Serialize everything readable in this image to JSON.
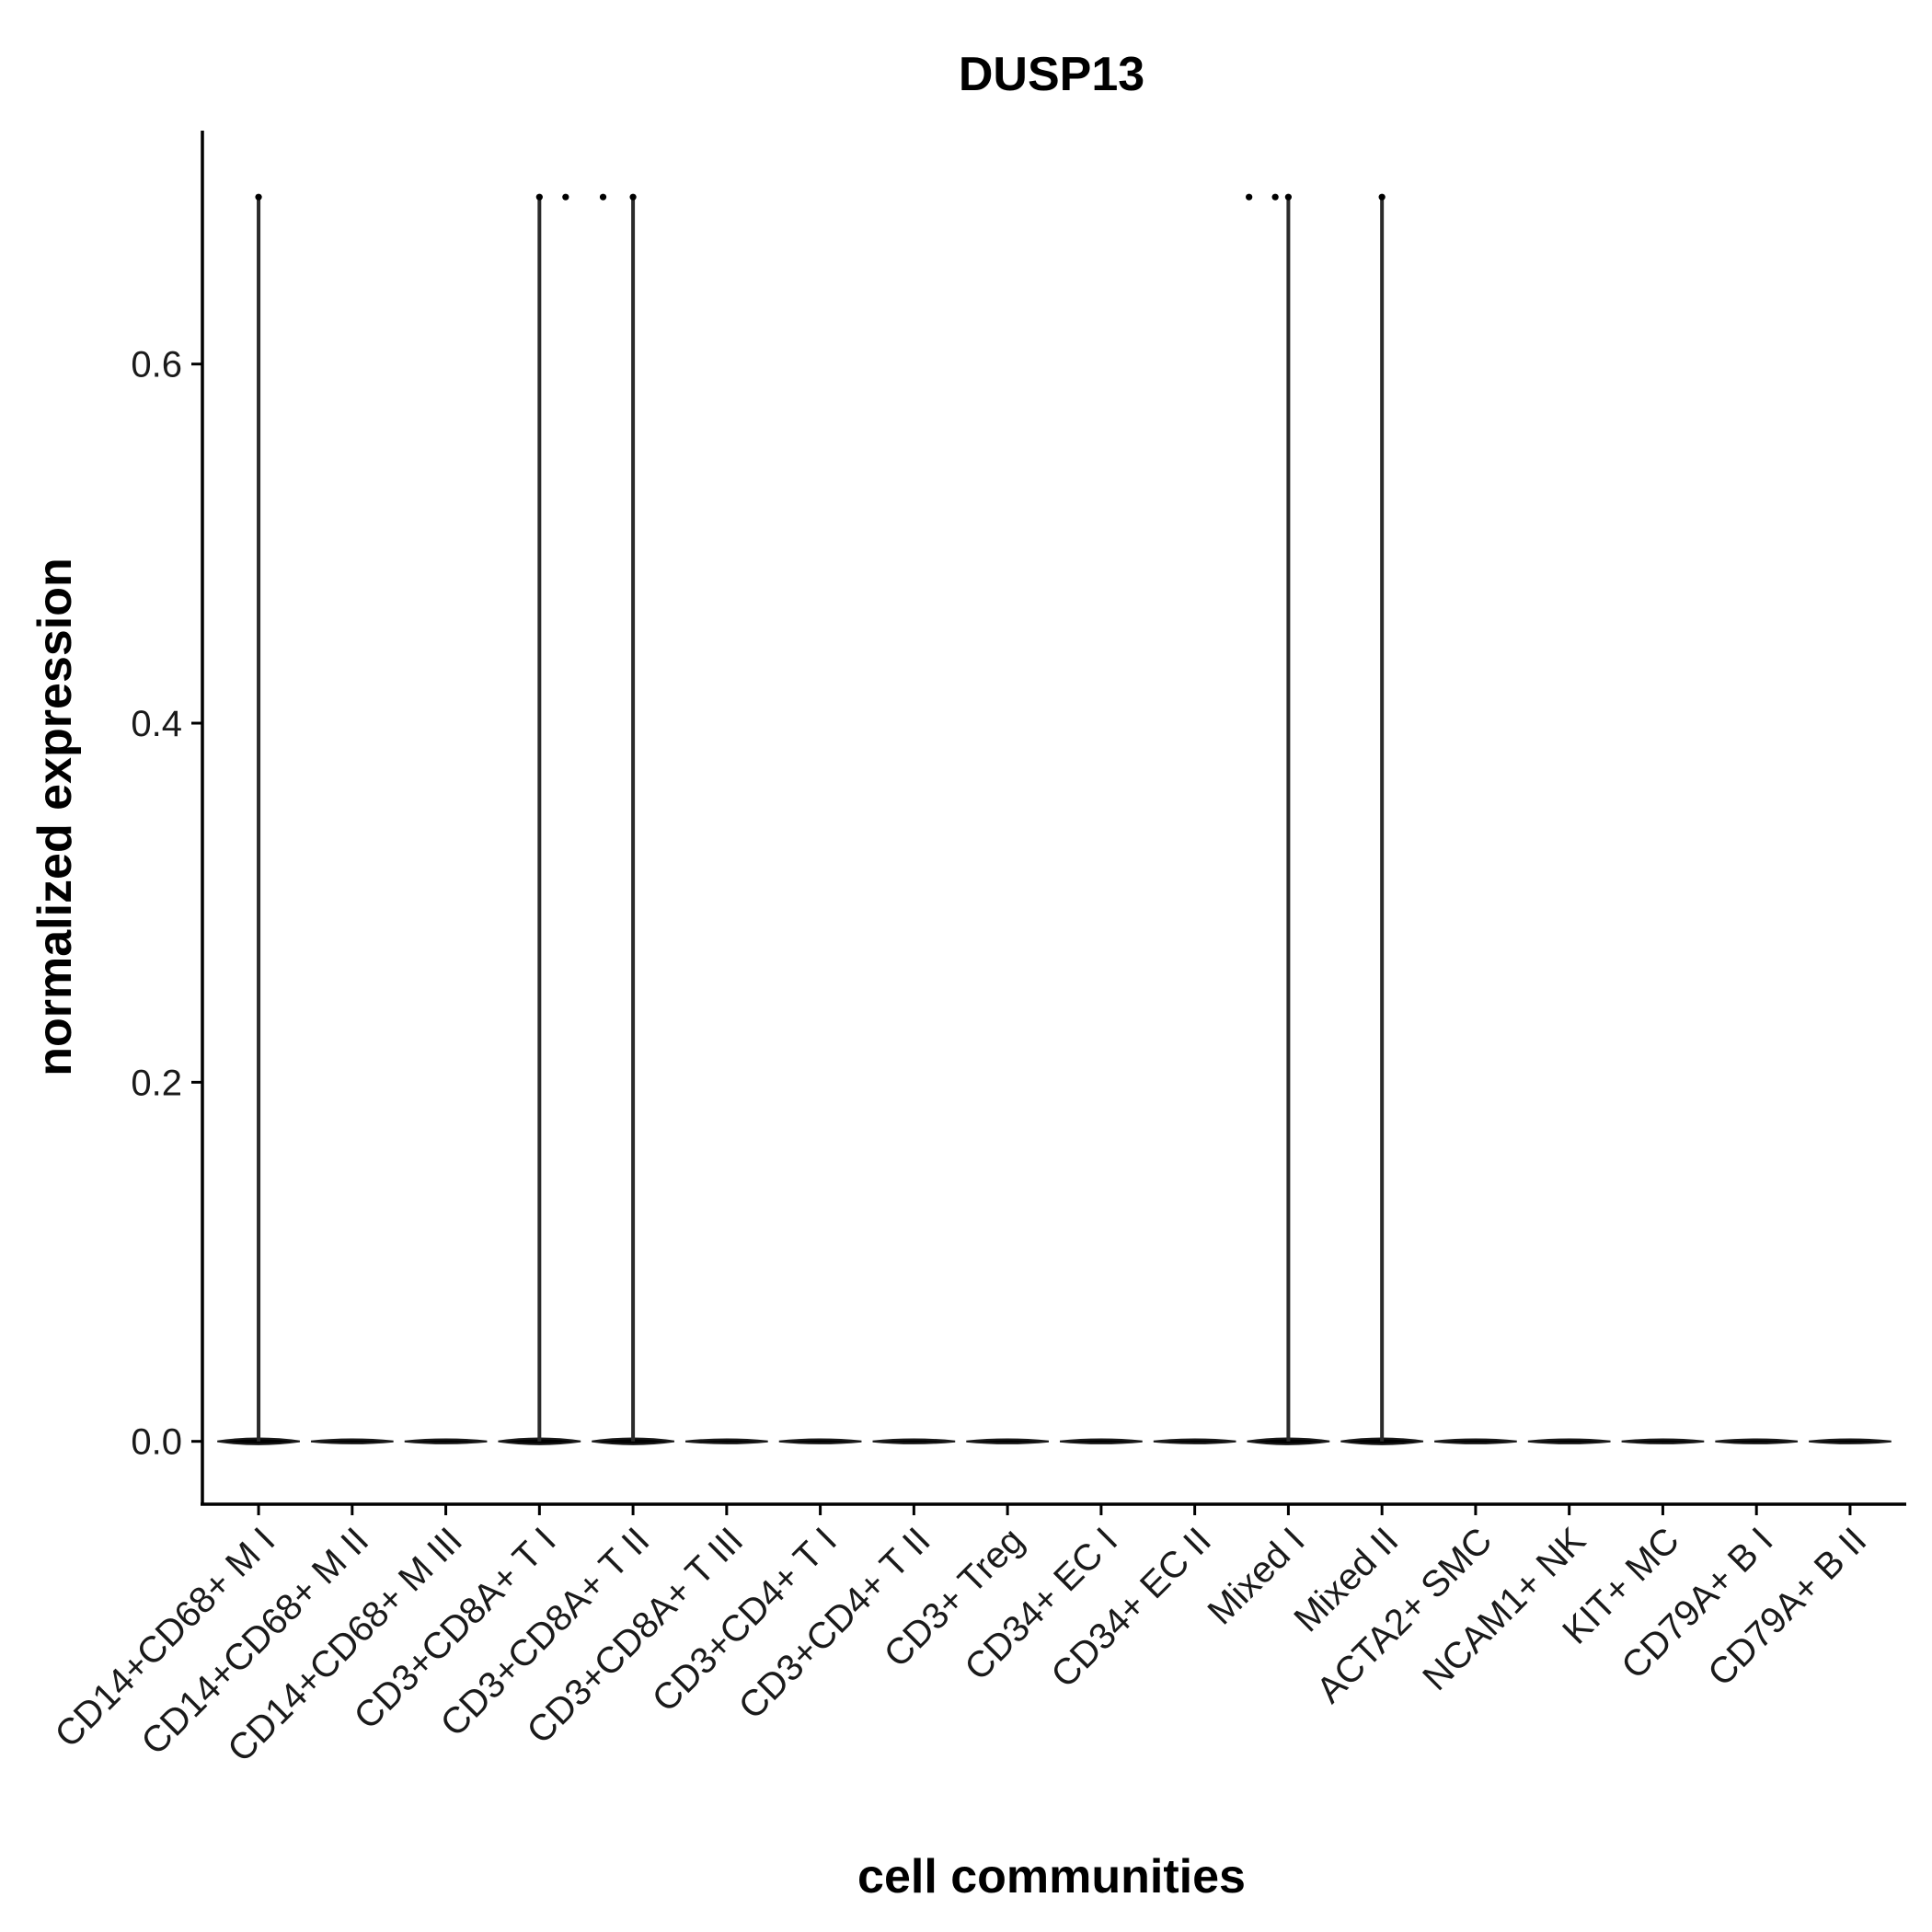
{
  "chart_data": {
    "type": "violin",
    "title": "DUSP13",
    "xlabel": "cell communities",
    "ylabel": "normalized expression",
    "ylim": [
      -0.035,
      0.73
    ],
    "yticks": [
      0.0,
      0.2,
      0.4,
      0.6
    ],
    "ytick_labels": [
      "0.0",
      "0.2",
      "0.4",
      "0.6"
    ],
    "grid": false,
    "legend": "none",
    "categories": [
      "CD14+CD68+ M I",
      "CD14+CD68+ M II",
      "CD14+CD68+ M III",
      "CD3+CD8A+ T I",
      "CD3+CD8A+ T II",
      "CD3+CD8A+ T III",
      "CD3+CD4+ T I",
      "CD3+CD4+ T II",
      "CD3+ Treg",
      "CD34+ EC I",
      "CD34+ EC II",
      "Mixed I",
      "Mixed II",
      "ACTA2+ SMC",
      "NCAM1+ NK",
      "KIT+ MC",
      "CD79A+ B I",
      "CD79A+ B II"
    ],
    "series": [
      {
        "max_values": [
          0.693,
          0,
          0,
          0.693,
          0.693,
          0,
          0,
          0,
          0,
          0,
          0,
          0.693,
          0.693,
          0,
          0,
          0,
          0,
          0
        ],
        "points": [
          {
            "category": "CD14+CD68+ M I",
            "offset": 0.0,
            "y": 0.693
          },
          {
            "category": "CD3+CD8A+ T I",
            "offset": 0.0,
            "y": 0.693
          },
          {
            "category": "CD3+CD8A+ T I",
            "offset": 0.28,
            "y": 0.693
          },
          {
            "category": "CD3+CD8A+ T II",
            "offset": -0.32,
            "y": 0.693
          },
          {
            "category": "CD3+CD8A+ T II",
            "offset": 0.0,
            "y": 0.693
          },
          {
            "category": "Mixed I",
            "offset": -0.42,
            "y": 0.693
          },
          {
            "category": "Mixed I",
            "offset": -0.14,
            "y": 0.693
          },
          {
            "category": "Mixed I",
            "offset": 0.0,
            "y": 0.693
          },
          {
            "category": "Mixed II",
            "offset": 0.0,
            "y": 0.693
          }
        ]
      }
    ]
  }
}
